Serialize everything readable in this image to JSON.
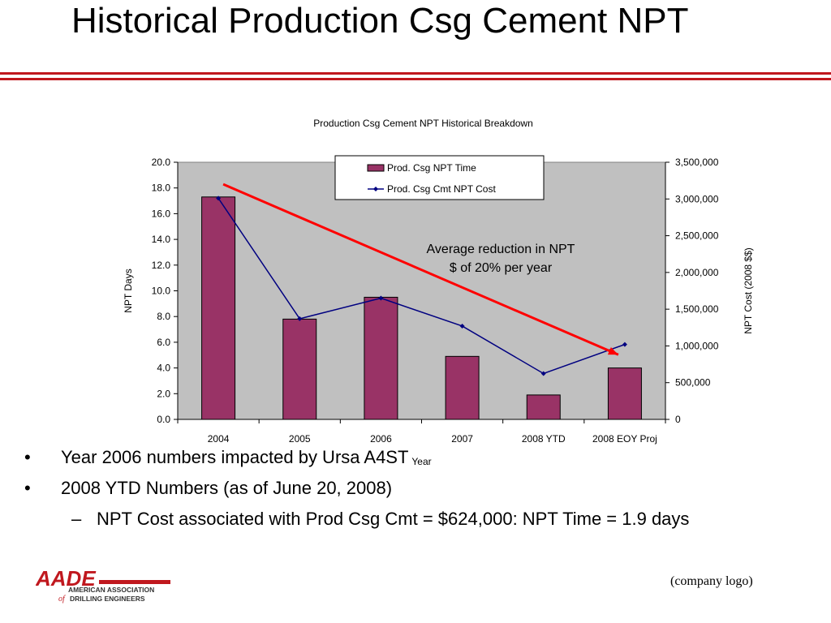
{
  "slide": {
    "title": "Historical Production Csg Cement NPT",
    "company_logo_text": "(company logo)"
  },
  "logo": {
    "name": "AADE",
    "line1": "AMERICAN ASSOCIATION",
    "line2_prefix": "of",
    "line2": "DRILLING ENGINEERS",
    "color": "#c0181e"
  },
  "colors": {
    "accent": "#c0181e",
    "bar": "#993366",
    "cost_line": "#000080",
    "trend": "#ff0000",
    "plot_bg": "#c0c0c0"
  },
  "chart_data": {
    "type": "bar",
    "title": "Production Csg Cement NPT Historical Breakdown",
    "xlabel": "Year",
    "ylabel": "NPT Days",
    "y2label": "NPT Cost (2008 $$)",
    "categories": [
      "2004",
      "2005",
      "2006",
      "2007",
      "2008 YTD",
      "2008 EOY Proj"
    ],
    "ylim": [
      0,
      20
    ],
    "y2lim": [
      0,
      3500000
    ],
    "yticks": [
      "0.0",
      "2.0",
      "4.0",
      "6.0",
      "8.0",
      "10.0",
      "12.0",
      "14.0",
      "16.0",
      "18.0",
      "20.0"
    ],
    "y2ticks": [
      "0",
      "500,000",
      "1,000,000",
      "1,500,000",
      "2,000,000",
      "2,500,000",
      "3,000,000",
      "3,500,000"
    ],
    "series": [
      {
        "name": "Prod. Csg NPT Time",
        "type": "bar",
        "axis": "left",
        "values": [
          17.3,
          7.8,
          9.5,
          4.9,
          1.9,
          4.0
        ]
      },
      {
        "name": "Prod. Csg Cmt NPT Cost",
        "type": "line",
        "axis": "right",
        "values": [
          3010000,
          1370000,
          1650000,
          1270000,
          624000,
          1020000
        ]
      }
    ],
    "trend_arrow": {
      "from_x": "2004",
      "from_y2": 3200000,
      "to_x": "2008 EOY Proj",
      "to_y2": 880000
    },
    "annotation": "Average reduction in NPT $ of 20% per year",
    "grid": false,
    "legend": "top"
  },
  "bullets": [
    {
      "text": "Year 2006 numbers impacted by  Ursa A4ST"
    },
    {
      "text": "2008 YTD Numbers (as of June 20, 2008)"
    }
  ],
  "sub_bullets": [
    {
      "text": "NPT Cost associated with Prod Csg Cmt = $624,000:  NPT Time = 1.9 days"
    }
  ]
}
